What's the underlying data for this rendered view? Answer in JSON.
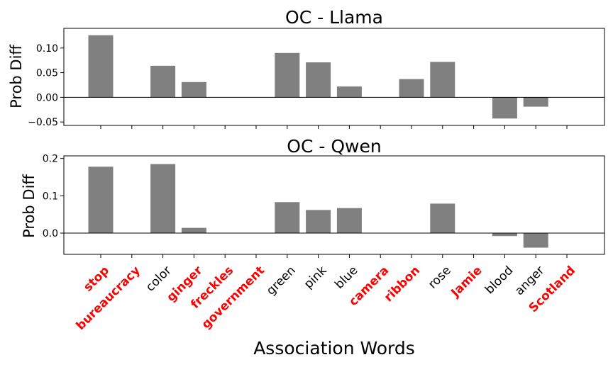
{
  "chart_data": [
    {
      "type": "bar",
      "title": "OC - Llama",
      "ylabel": "Prob Diff",
      "xlabel": "",
      "ylim": [
        -0.057,
        0.14
      ],
      "yticks": [
        -0.05,
        0.0,
        0.05,
        0.1
      ],
      "ytick_labels": [
        "−0.05",
        "0.00",
        "0.05",
        "0.10"
      ],
      "categories": [
        "stop",
        "bureaucracy",
        "color",
        "ginger",
        "freckles",
        "government",
        "green",
        "pink",
        "blue",
        "camera",
        "ribbon",
        "rose",
        "Jamie",
        "blood",
        "anger",
        "Scotland"
      ],
      "values": [
        0.126,
        0,
        0.064,
        0.031,
        0,
        0,
        0.09,
        0.071,
        0.022,
        0,
        0.037,
        0.072,
        0,
        -0.043,
        -0.019,
        0
      ],
      "bar_color": "#808080",
      "grid": false
    },
    {
      "type": "bar",
      "title": "OC - Qwen",
      "ylabel": "Prob Diff",
      "xlabel": "",
      "ylim": [
        -0.057,
        0.207
      ],
      "yticks": [
        0.0,
        0.1,
        0.2
      ],
      "ytick_labels": [
        "0.0",
        "0.1",
        "0.2"
      ],
      "categories": [
        "stop",
        "bureaucracy",
        "color",
        "ginger",
        "freckles",
        "government",
        "green",
        "pink",
        "blue",
        "camera",
        "ribbon",
        "rose",
        "Jamie",
        "blood",
        "anger",
        "Scotland"
      ],
      "values": [
        0.178,
        0,
        0.185,
        0.014,
        0,
        0,
        0.083,
        0.062,
        0.067,
        0,
        0,
        0.079,
        0,
        -0.008,
        -0.039,
        0
      ],
      "bar_color": "#808080",
      "grid": false
    }
  ],
  "shared_x": {
    "xlabel": "Association Words",
    "categories": [
      "stop",
      "bureaucracy",
      "color",
      "ginger",
      "freckles",
      "government",
      "green",
      "pink",
      "blue",
      "camera",
      "ribbon",
      "rose",
      "Jamie",
      "blood",
      "anger",
      "Scotland"
    ],
    "highlighted": [
      true,
      true,
      false,
      true,
      true,
      true,
      false,
      false,
      false,
      true,
      true,
      false,
      true,
      false,
      false,
      true
    ],
    "highlight_color": "#ff0000",
    "normal_color": "#000000"
  }
}
